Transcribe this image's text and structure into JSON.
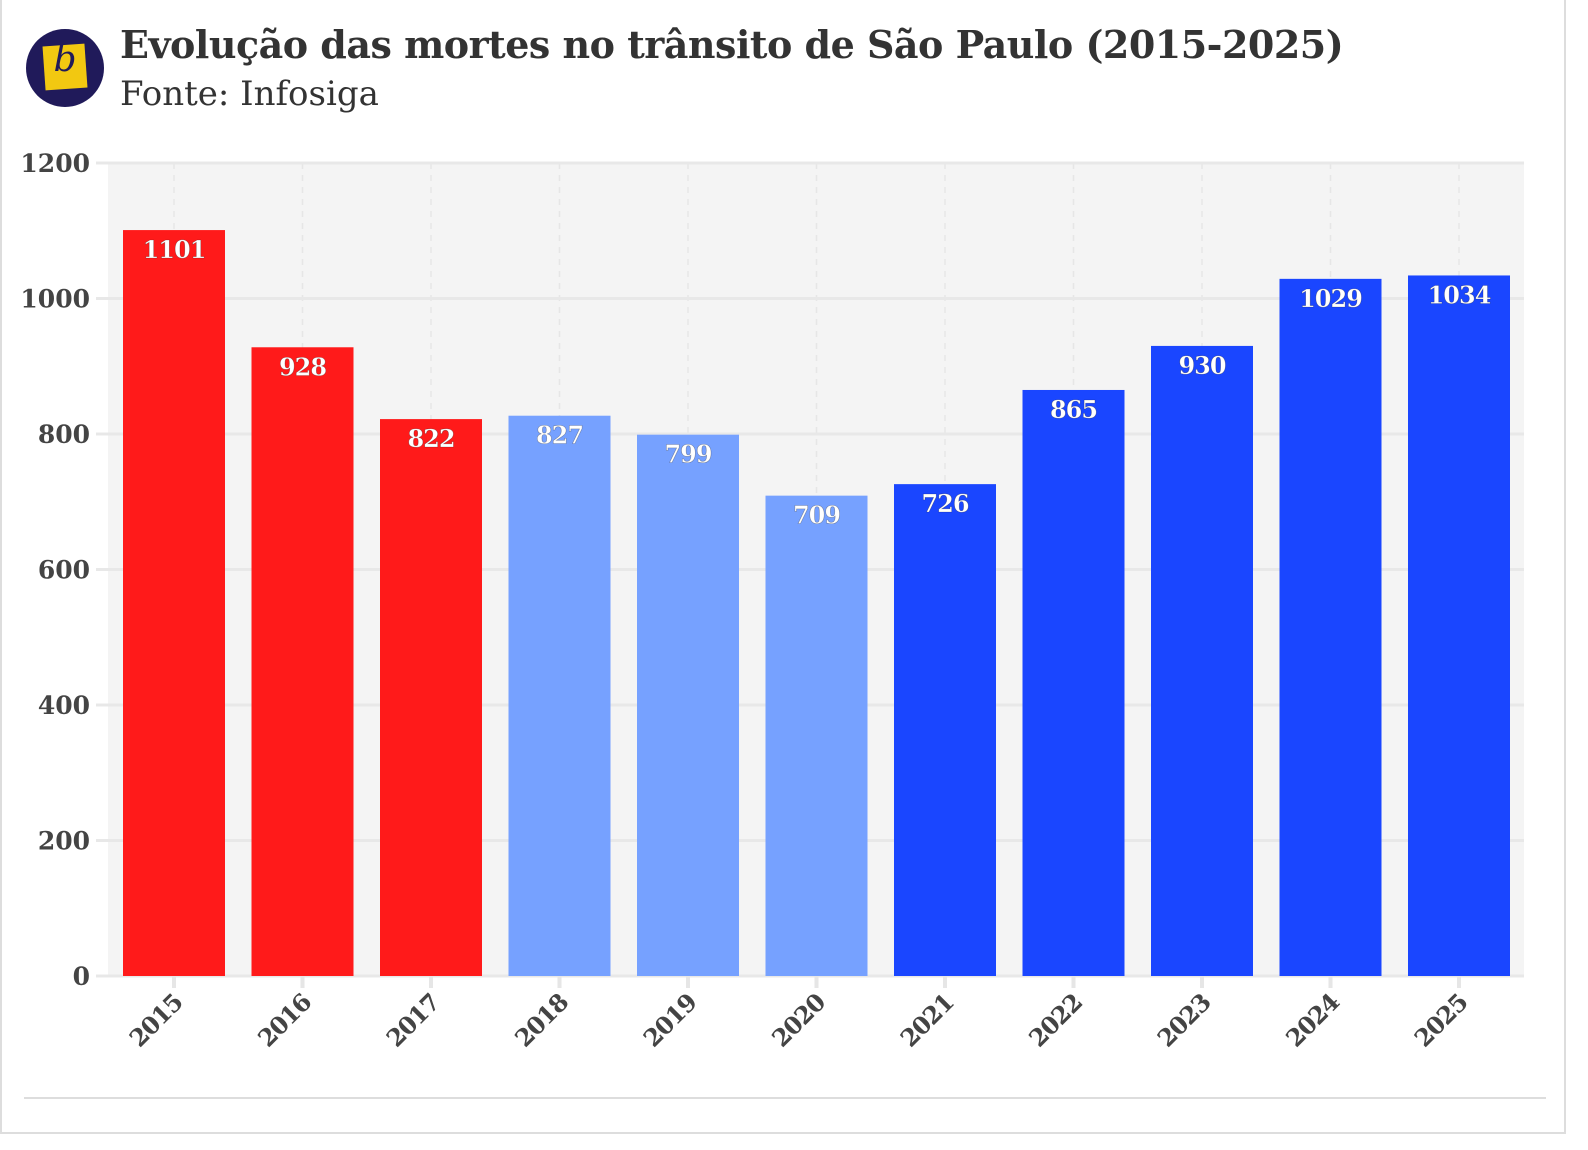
{
  "header": {
    "title": "Evolução das mortes no trânsito de São Paulo (2015-2025)",
    "subtitle": "Fonte: Infosiga",
    "logo_letter": "b"
  },
  "colors": {
    "red": "#ff1a1a",
    "light_blue": "#76a1ff",
    "blue": "#1a46ff",
    "plot_bg": "#f4f4f4"
  },
  "chart_data": {
    "type": "bar",
    "title": "Evolução das mortes no trânsito de São Paulo (2015-2025)",
    "subtitle": "Fonte: Infosiga",
    "categories": [
      "2015",
      "2016",
      "2017",
      "2018",
      "2019",
      "2020",
      "2021",
      "2022",
      "2023",
      "2024",
      "2025"
    ],
    "values": [
      1101,
      928,
      822,
      827,
      799,
      709,
      726,
      865,
      930,
      1029,
      1034
    ],
    "bar_colors": [
      "red",
      "red",
      "red",
      "light_blue",
      "light_blue",
      "light_blue",
      "blue",
      "blue",
      "blue",
      "blue",
      "blue"
    ],
    "xlabel": "",
    "ylabel": "",
    "ylim": [
      0,
      1200
    ],
    "yticks": [
      0,
      200,
      400,
      600,
      800,
      1000,
      1200
    ],
    "grid": true
  }
}
